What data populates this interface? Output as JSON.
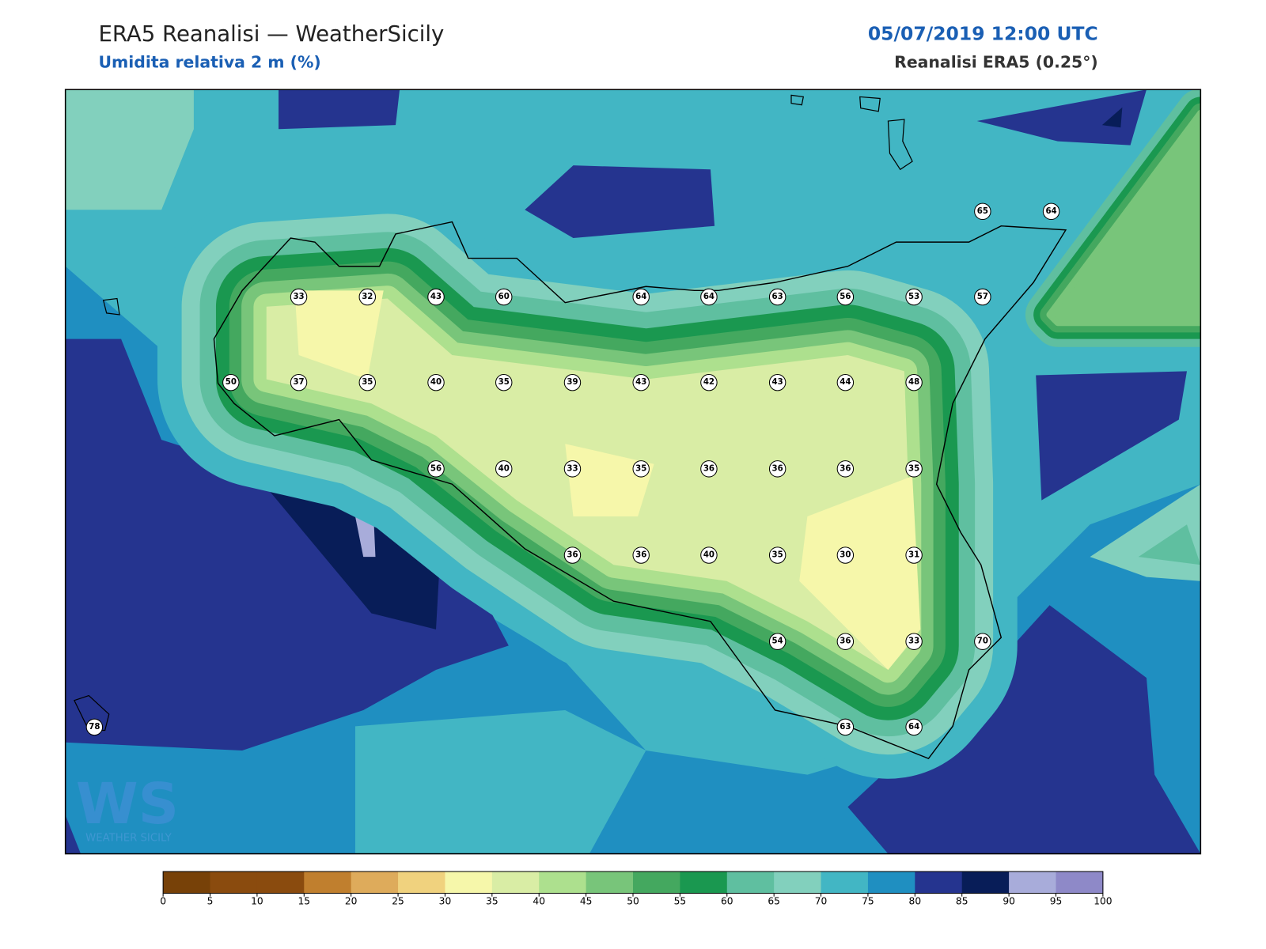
{
  "header": {
    "title": "ERA5 Reanalisi — WeatherSicily",
    "subtitle": "Umidita relativa 2 m (%)",
    "datetime": "05/07/2019 12:00 UTC",
    "source": "Reanalisi ERA5 (0.25°)"
  },
  "stations": [
    33,
    32,
    43,
    60,
    64,
    64,
    63,
    56,
    53,
    57,
    65,
    64,
    50,
    37,
    35,
    40,
    35,
    39,
    43,
    42,
    43,
    44,
    48,
    56,
    40,
    33,
    35,
    36,
    36,
    36,
    35,
    36,
    36,
    40,
    35,
    30,
    31,
    54,
    36,
    33,
    70,
    78,
    63,
    64
  ],
  "colorbar": {
    "ticks": [
      0,
      5,
      10,
      15,
      20,
      25,
      30,
      35,
      40,
      45,
      50,
      55,
      60,
      65,
      70,
      75,
      80,
      85,
      90,
      95,
      100
    ],
    "colors": [
      "#774108",
      "#8a4b0e",
      "#8a4b0e",
      "#c07f2e",
      "#deab5b",
      "#f0d27e",
      "#f6f7aa",
      "#d9eda5",
      "#ade08e",
      "#78c57a",
      "#44a85f",
      "#1a9850",
      "#5fbfa0",
      "#82d0bd",
      "#42b6c4",
      "#1f8fc1",
      "#25348f",
      "#081d58",
      "#a8acda",
      "#8e89c8"
    ]
  },
  "logo": {
    "mark": "WS",
    "name": "WEATHER SICILY"
  }
}
